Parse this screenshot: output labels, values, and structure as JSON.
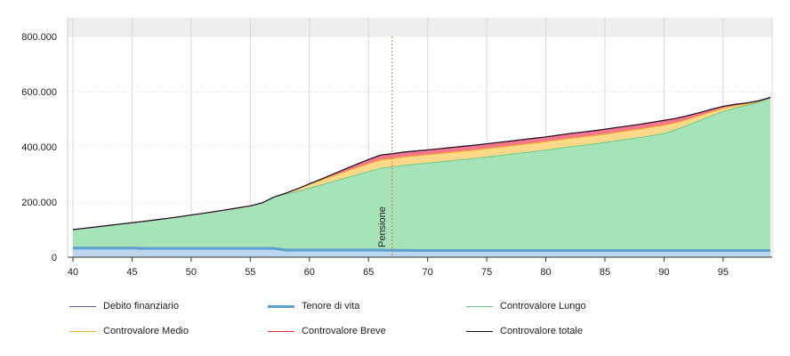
{
  "chart_data": {
    "type": "area",
    "x": [
      40,
      41,
      42,
      43,
      44,
      45,
      46,
      47,
      48,
      49,
      50,
      51,
      52,
      53,
      54,
      55,
      56,
      57,
      58,
      59,
      60,
      61,
      62,
      63,
      64,
      65,
      66,
      67,
      68,
      69,
      70,
      71,
      72,
      73,
      74,
      75,
      76,
      77,
      78,
      79,
      80,
      81,
      82,
      83,
      84,
      85,
      86,
      87,
      88,
      89,
      90,
      91,
      92,
      93,
      94,
      95,
      96,
      97,
      98,
      99
    ],
    "xlim": [
      40,
      99
    ],
    "ylim": [
      0,
      800000
    ],
    "x_ticks": [
      40,
      45,
      50,
      55,
      60,
      65,
      70,
      75,
      80,
      85,
      90,
      95
    ],
    "y_ticks": [
      0,
      200000,
      400000,
      600000,
      800000
    ],
    "y_tick_labels": [
      "0",
      "200.000",
      "400.000",
      "600.000",
      "800.000"
    ],
    "grid": true,
    "legend_position": "bottom",
    "series": [
      {
        "name": "Controvalore Lungo",
        "color": "#6cc98a",
        "fill": "#a6e3b9",
        "values": [
          100000,
          105000,
          110000,
          115000,
          120000,
          125000,
          130000,
          135500,
          141000,
          146500,
          153000,
          159000,
          165500,
          172000,
          179000,
          186000,
          197000,
          218000,
          228000,
          238000,
          250000,
          262000,
          274000,
          286000,
          298000,
          310000,
          322000,
          327000,
          333000,
          337000,
          341000,
          345000,
          349500,
          354000,
          358000,
          363000,
          368000,
          373000,
          378000,
          383000,
          388000,
          394000,
          400000,
          405000,
          410000,
          416000,
          422000,
          428000,
          434000,
          441000,
          448000,
          462000,
          478000,
          495000,
          512000,
          528000,
          540000,
          550000,
          562000,
          577000
        ]
      },
      {
        "name": "Controvalore Medio",
        "color": "#f0b830",
        "fill": "#ffd98a",
        "values": [
          0,
          0,
          0,
          0,
          0,
          0,
          0,
          0,
          0,
          0,
          0,
          0,
          0,
          0,
          0,
          0,
          0,
          0,
          4000,
          10000,
          14000,
          17000,
          20000,
          23000,
          26000,
          28000,
          30000,
          30000,
          30000,
          30000,
          30000,
          30000,
          30000,
          30000,
          30000,
          30000,
          30000,
          30000,
          30000,
          30000,
          30000,
          30000,
          30000,
          30000,
          30000,
          30000,
          30000,
          30000,
          30000,
          30000,
          30000,
          25000,
          21000,
          17000,
          14000,
          11000,
          8000,
          5000,
          3000,
          1000
        ]
      },
      {
        "name": "Controvalore Breve",
        "color": "#e8293a",
        "fill": "#f2788a",
        "values": [
          0,
          0,
          0,
          0,
          0,
          0,
          0,
          0,
          0,
          0,
          0,
          0,
          0,
          0,
          0,
          0,
          0,
          0,
          0,
          0,
          2000,
          4000,
          7000,
          10000,
          13000,
          16000,
          18000,
          18000,
          18000,
          18000,
          18000,
          18000,
          18000,
          18000,
          18000,
          18000,
          18000,
          18000,
          18000,
          18000,
          18000,
          18000,
          18000,
          18000,
          18000,
          18000,
          18000,
          18000,
          18000,
          18000,
          18000,
          16000,
          14000,
          12000,
          10000,
          8000,
          6000,
          4000,
          2000,
          1000
        ]
      },
      {
        "name": "Debito finanziario",
        "color": "#6a5a9a",
        "values": [
          0,
          0,
          0,
          0,
          0,
          0,
          0,
          0,
          0,
          0,
          0,
          0,
          0,
          0,
          0,
          0,
          0,
          0,
          0,
          0,
          0,
          0,
          0,
          0,
          0,
          0,
          0,
          0,
          0,
          0,
          0,
          0,
          0,
          0,
          0,
          0,
          0,
          0,
          0,
          0,
          0,
          0,
          0,
          0,
          0,
          0,
          0,
          0,
          0,
          0,
          0,
          0,
          0,
          0,
          0,
          0,
          0,
          0,
          0,
          0
        ]
      },
      {
        "name": "Tenore di vita",
        "color": "#5da0d0",
        "fill": "#bcd6ef",
        "values": [
          33000,
          33000,
          33000,
          33000,
          33000,
          33000,
          32000,
          32000,
          32000,
          32000,
          32000,
          32000,
          32000,
          32000,
          32000,
          32000,
          32000,
          32000,
          26000,
          26000,
          26000,
          26000,
          26000,
          26000,
          26000,
          26000,
          26000,
          25000,
          25000,
          24000,
          24000,
          24000,
          24000,
          24000,
          24000,
          24000,
          24000,
          24000,
          24000,
          24000,
          24000,
          24000,
          24000,
          24000,
          24000,
          24000,
          24000,
          24000,
          24000,
          24000,
          24000,
          24000,
          24000,
          24000,
          24000,
          24000,
          24000,
          24000,
          24000,
          24000
        ]
      },
      {
        "name": "Controvalore totale",
        "color": "#1a1030"
      }
    ],
    "annotations": [
      {
        "x": 67,
        "label": "Pensione",
        "color": "#c08040"
      }
    ]
  },
  "legend": [
    {
      "label": "Debito finanziario",
      "color": "#6a5a9a",
      "thick": false
    },
    {
      "label": "Tenore di vita",
      "color": "#5da0d0",
      "thick": true
    },
    {
      "label": "Controvalore Lungo",
      "color": "#6cc98a",
      "thick": false
    },
    {
      "label": "Controvalore Medio",
      "color": "#f0b830",
      "thick": false
    },
    {
      "label": "Controvalore Breve",
      "color": "#e8293a",
      "thick": false
    },
    {
      "label": "Controvalore totale",
      "color": "#1a1030",
      "thick": false
    }
  ]
}
